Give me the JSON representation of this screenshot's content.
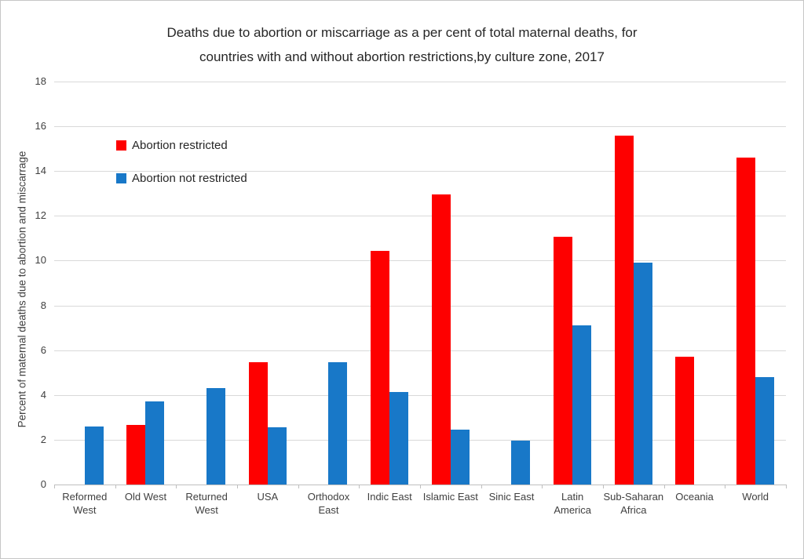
{
  "figure": {
    "title_lines": [
      "Deaths due to abortion or miscarriage as a per cent of total maternal deaths, for",
      "countries with and without abortion restrictions,by culture zone, 2017"
    ]
  },
  "chart_data": {
    "type": "bar",
    "title": "Deaths due to abortion or miscarriage as a per cent of total maternal deaths, for countries with and without abortion restrictions,by culture zone, 2017",
    "xlabel": "",
    "ylabel": "Percent of maternal deaths due to abortion and miscarrage",
    "ylim": [
      0,
      18
    ],
    "ytick_step": 2,
    "grid": true,
    "legend_position": "upper-left-inside",
    "categories": [
      "Reformed West",
      "Old West",
      "Returned West",
      "USA",
      "Orthodox East",
      "Indic East",
      "Islamic East",
      "Sinic East",
      "Latin America",
      "Sub-Saharan Africa",
      "Oceania",
      "World"
    ],
    "series": [
      {
        "name": "Abortion restricted",
        "color": "#FE0000",
        "values": [
          0,
          2.65,
          0,
          5.45,
          0,
          10.45,
          12.95,
          0,
          11.05,
          15.6,
          5.7,
          14.6
        ]
      },
      {
        "name": "Abortion not restricted",
        "color": "#1878C8",
        "values": [
          2.6,
          3.7,
          4.3,
          2.55,
          5.45,
          4.15,
          2.45,
          1.95,
          7.1,
          9.9,
          0,
          4.8
        ]
      }
    ],
    "colors": {
      "grid": "#D9D9D9",
      "axis": "#BFBFBF",
      "text": "#404040"
    }
  }
}
